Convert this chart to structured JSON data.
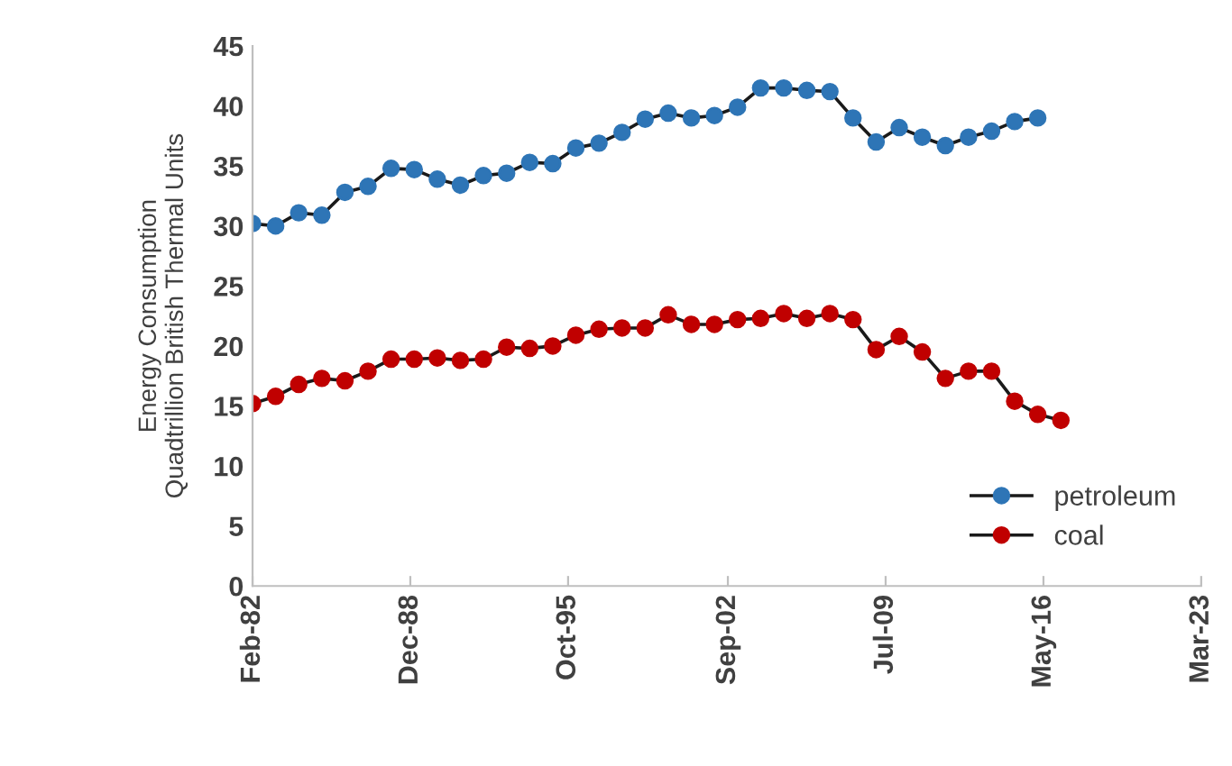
{
  "chart_data": {
    "type": "line",
    "ylabel": "Energy Consumption\nQuadtrillion British Thermal Units",
    "x": [
      "1982-02",
      "1983-02",
      "1984-02",
      "1985-02",
      "1986-02",
      "1987-02",
      "1988-02",
      "1989-02",
      "1990-02",
      "1991-02",
      "1992-02",
      "1993-02",
      "1994-02",
      "1995-02",
      "1996-02",
      "1997-02",
      "1998-02",
      "1999-02",
      "2000-02",
      "2001-02",
      "2002-02",
      "2003-02",
      "2004-02",
      "2005-02",
      "2006-02",
      "2007-02",
      "2008-02",
      "2009-02",
      "2010-02",
      "2011-02",
      "2012-02",
      "2013-02",
      "2014-02",
      "2015-02",
      "2016-02",
      "2017-02"
    ],
    "series": [
      {
        "name": "petroleum",
        "color": "#2e75b6",
        "values": [
          30.2,
          30.0,
          31.1,
          30.9,
          32.8,
          33.3,
          34.8,
          34.7,
          33.9,
          33.4,
          34.2,
          34.4,
          35.3,
          35.2,
          36.5,
          36.9,
          37.8,
          38.9,
          39.4,
          39.0,
          39.2,
          39.9,
          41.5,
          41.5,
          41.3,
          41.2,
          39.0,
          37.0,
          38.2,
          37.4,
          36.7,
          37.4,
          37.9,
          38.7,
          39.0,
          null
        ]
      },
      {
        "name": "coal",
        "color": "#c00000",
        "values": [
          15.2,
          15.8,
          16.8,
          17.3,
          17.1,
          17.9,
          18.9,
          18.9,
          19.0,
          18.8,
          18.9,
          19.9,
          19.8,
          20.0,
          20.9,
          21.4,
          21.5,
          21.5,
          22.6,
          21.8,
          21.8,
          22.2,
          22.3,
          22.7,
          22.3,
          22.7,
          22.2,
          19.7,
          20.8,
          19.5,
          17.3,
          17.9,
          17.9,
          15.4,
          14.3,
          13.8
        ]
      }
    ],
    "xlim": [
      "1982-02",
      "2023-03"
    ],
    "xticks": [
      {
        "value": "1982-02",
        "label": "Feb-82"
      },
      {
        "value": "1988-12",
        "label": "Dec-88"
      },
      {
        "value": "1995-10",
        "label": "Oct-95"
      },
      {
        "value": "2002-09",
        "label": "Sep-02"
      },
      {
        "value": "2009-07",
        "label": "Jul-09"
      },
      {
        "value": "2016-05",
        "label": "May-16"
      },
      {
        "value": "2023-03",
        "label": "Mar-23"
      }
    ],
    "ylim": [
      0,
      45
    ],
    "yticks": [
      0,
      5,
      10,
      15,
      20,
      25,
      30,
      35,
      40,
      45
    ],
    "marker": "circle",
    "line_style": "solid",
    "grid": false,
    "legend": "bottom right"
  }
}
